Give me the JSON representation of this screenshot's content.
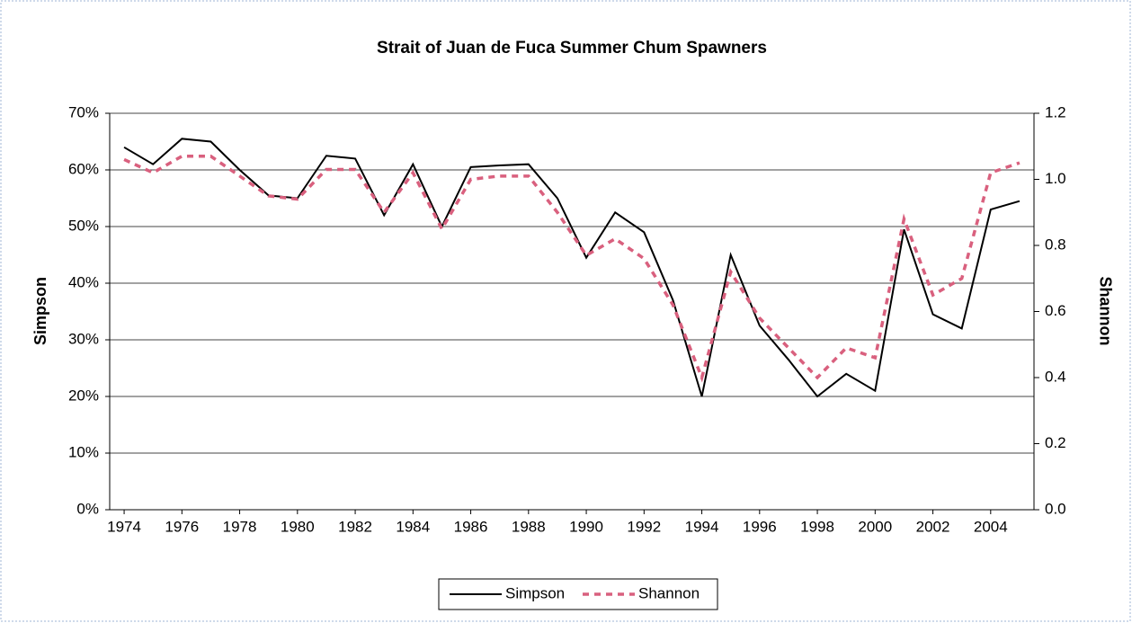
{
  "chart_data": {
    "type": "line",
    "title": "Strait of Juan de Fuca Summer Chum Spawners",
    "y_label": "Simpson",
    "y2_label": "Shannon",
    "x": [
      1974,
      1975,
      1976,
      1977,
      1978,
      1979,
      1980,
      1981,
      1982,
      1983,
      1984,
      1985,
      1986,
      1987,
      1988,
      1989,
      1990,
      1991,
      1992,
      1993,
      1994,
      1995,
      1996,
      1997,
      1998,
      1999,
      2000,
      2001,
      2002,
      2003,
      2004,
      2005
    ],
    "xlim": [
      1973.5,
      2005.5
    ],
    "xticks": [
      1974,
      1976,
      1978,
      1980,
      1982,
      1984,
      1986,
      1988,
      1990,
      1992,
      1994,
      1996,
      1998,
      2000,
      2002,
      2004
    ],
    "ylim": [
      0,
      70
    ],
    "yticks": [
      {
        "value": 0,
        "label": "0%"
      },
      {
        "value": 10,
        "label": "10%"
      },
      {
        "value": 20,
        "label": "20%"
      },
      {
        "value": 30,
        "label": "30%"
      },
      {
        "value": 40,
        "label": "40%"
      },
      {
        "value": 50,
        "label": "50%"
      },
      {
        "value": 60,
        "label": "60%"
      },
      {
        "value": 70,
        "label": "70%"
      }
    ],
    "y2lim": [
      0,
      1.2
    ],
    "y2ticks": [
      {
        "value": 0,
        "label": "0.0"
      },
      0.2,
      0.4,
      0.6,
      0.8,
      {
        "value": 1,
        "label": "1.0"
      },
      1.2
    ],
    "grid": true,
    "legend": "bottom",
    "series": [
      {
        "name": "Simpson",
        "color": "#000000",
        "dash": "solid",
        "values": [
          64,
          61,
          65.5,
          65,
          60,
          55.5,
          55,
          62.5,
          62,
          52,
          61,
          50,
          60.5,
          60.8,
          61,
          55,
          44.5,
          52.5,
          49,
          37,
          20,
          45,
          32.5,
          26.5,
          20,
          24,
          21,
          49.5,
          34.5,
          32,
          53,
          54.5
        ]
      },
      {
        "name": "Shannon",
        "color": "#d9607e",
        "dash": "dashed",
        "axis": "y2",
        "values": [
          1.06,
          1.02,
          1.07,
          1.07,
          1.01,
          0.95,
          0.94,
          1.03,
          1.03,
          0.9,
          1.02,
          0.85,
          1.0,
          1.01,
          1.01,
          0.9,
          0.77,
          0.82,
          0.76,
          0.62,
          0.4,
          0.72,
          0.58,
          0.49,
          0.4,
          0.49,
          0.46,
          0.88,
          0.65,
          0.7,
          1.02,
          1.05
        ]
      }
    ]
  }
}
